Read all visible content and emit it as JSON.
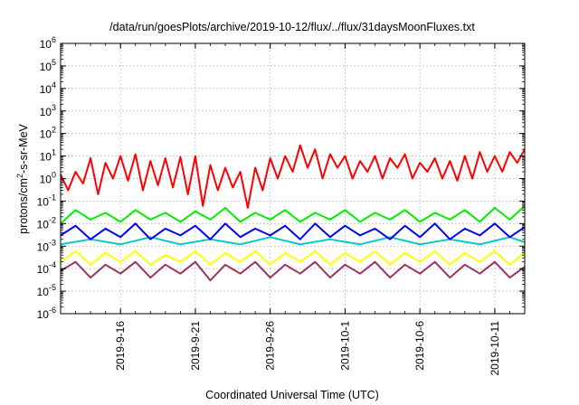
{
  "chart_data": {
    "type": "line",
    "title": "/data/run/goesPlots/archive/2019-10-12/flux/../flux/31daysMoonFluxes.txt",
    "xlabel": "Coordinated Universal Time (UTC)",
    "ylabel_base": "protons/cm",
    "ylabel_sup": "2",
    "ylabel_rest": "-s-sr-MeV",
    "yscale": "log",
    "ylim": [
      1e-06,
      1000000.0
    ],
    "xlim": [
      "2019-09-12",
      "2019-10-13"
    ],
    "grid": true,
    "yticks": [
      {
        "value": 1e-06,
        "base": "10",
        "exp": "-6"
      },
      {
        "value": 1e-05,
        "base": "10",
        "exp": "-5"
      },
      {
        "value": 0.0001,
        "base": "10",
        "exp": "-4"
      },
      {
        "value": 0.001,
        "base": "10",
        "exp": "-3"
      },
      {
        "value": 0.01,
        "base": "10",
        "exp": "-2"
      },
      {
        "value": 0.1,
        "base": "10",
        "exp": "-1"
      },
      {
        "value": 1,
        "base": "10",
        "exp": "0"
      },
      {
        "value": 10,
        "base": "10",
        "exp": "1"
      },
      {
        "value": 100,
        "base": "10",
        "exp": "2"
      },
      {
        "value": 1000,
        "base": "10",
        "exp": "3"
      },
      {
        "value": 10000.0,
        "base": "10",
        "exp": "4"
      },
      {
        "value": 100000.0,
        "base": "10",
        "exp": "5"
      },
      {
        "value": 1000000.0,
        "base": "10",
        "exp": "6"
      }
    ],
    "xticks": [
      {
        "date": "2019-09-16",
        "label": "2019-9-16"
      },
      {
        "date": "2019-09-21",
        "label": "2019-9-21"
      },
      {
        "date": "2019-09-26",
        "label": "2019-9-26"
      },
      {
        "date": "2019-10-01",
        "label": "2019-10-1"
      },
      {
        "date": "2019-10-06",
        "label": "2019-10-6"
      },
      {
        "date": "2019-10-11",
        "label": "2019-10-11"
      }
    ],
    "series": [
      {
        "color": "#ff0000",
        "points": [
          [
            "2019-09-12 00:00",
            1.5
          ],
          [
            "2019-09-12 12:00",
            0.3
          ],
          [
            "2019-09-13 00:00",
            2
          ],
          [
            "2019-09-13 12:00",
            0.6
          ],
          [
            "2019-09-14 00:00",
            8
          ],
          [
            "2019-09-14 12:00",
            0.2
          ],
          [
            "2019-09-15 00:00",
            5
          ],
          [
            "2019-09-15 12:00",
            1
          ],
          [
            "2019-09-16 00:00",
            10
          ],
          [
            "2019-09-16 12:00",
            0.8
          ],
          [
            "2019-09-17 00:00",
            12
          ],
          [
            "2019-09-17 12:00",
            0.3
          ],
          [
            "2019-09-18 00:00",
            6
          ],
          [
            "2019-09-18 12:00",
            0.5
          ],
          [
            "2019-09-19 00:00",
            8
          ],
          [
            "2019-09-19 12:00",
            0.4
          ],
          [
            "2019-09-20 00:00",
            9
          ],
          [
            "2019-09-20 12:00",
            0.2
          ],
          [
            "2019-09-21 00:00",
            10
          ],
          [
            "2019-09-21 12:00",
            0.06
          ],
          [
            "2019-09-22 00:00",
            4
          ],
          [
            "2019-09-22 12:00",
            0.3
          ],
          [
            "2019-09-23 00:00",
            3
          ],
          [
            "2019-09-23 12:00",
            0.4
          ],
          [
            "2019-09-24 00:00",
            2
          ],
          [
            "2019-09-24 12:00",
            0.05
          ],
          [
            "2019-09-25 00:00",
            3
          ],
          [
            "2019-09-25 12:00",
            0.3
          ],
          [
            "2019-09-26 00:00",
            8
          ],
          [
            "2019-09-26 12:00",
            1
          ],
          [
            "2019-09-27 00:00",
            10
          ],
          [
            "2019-09-27 12:00",
            2
          ],
          [
            "2019-09-28 00:00",
            30
          ],
          [
            "2019-09-28 12:00",
            3
          ],
          [
            "2019-09-29 00:00",
            20
          ],
          [
            "2019-09-29 12:00",
            1
          ],
          [
            "2019-09-30 00:00",
            12
          ],
          [
            "2019-09-30 12:00",
            3
          ],
          [
            "2019-10-01 00:00",
            10
          ],
          [
            "2019-10-01 12:00",
            1
          ],
          [
            "2019-10-02 00:00",
            6
          ],
          [
            "2019-10-02 12:00",
            2
          ],
          [
            "2019-10-03 00:00",
            10
          ],
          [
            "2019-10-03 12:00",
            1
          ],
          [
            "2019-10-04 00:00",
            8
          ],
          [
            "2019-10-04 12:00",
            3
          ],
          [
            "2019-10-05 00:00",
            12
          ],
          [
            "2019-10-05 12:00",
            1
          ],
          [
            "2019-10-06 00:00",
            5
          ],
          [
            "2019-10-06 12:00",
            2
          ],
          [
            "2019-10-07 00:00",
            8
          ],
          [
            "2019-10-07 12:00",
            1
          ],
          [
            "2019-10-08 00:00",
            6
          ],
          [
            "2019-10-08 12:00",
            0.8
          ],
          [
            "2019-10-09 00:00",
            10
          ],
          [
            "2019-10-09 12:00",
            1
          ],
          [
            "2019-10-10 00:00",
            15
          ],
          [
            "2019-10-10 12:00",
            2
          ],
          [
            "2019-10-11 00:00",
            10
          ],
          [
            "2019-10-11 12:00",
            2
          ],
          [
            "2019-10-12 00:00",
            15
          ],
          [
            "2019-10-12 12:00",
            5
          ],
          [
            "2019-10-13 00:00",
            20
          ]
        ]
      },
      {
        "color": "#00ee00",
        "points": [
          [
            "2019-09-12 00:00",
            0.01
          ],
          [
            "2019-09-13 00:00",
            0.04
          ],
          [
            "2019-09-14 00:00",
            0.015
          ],
          [
            "2019-09-15 00:00",
            0.03
          ],
          [
            "2019-09-16 00:00",
            0.012
          ],
          [
            "2019-09-17 00:00",
            0.04
          ],
          [
            "2019-09-18 00:00",
            0.015
          ],
          [
            "2019-09-19 00:00",
            0.03
          ],
          [
            "2019-09-20 00:00",
            0.012
          ],
          [
            "2019-09-21 00:00",
            0.035
          ],
          [
            "2019-09-22 00:00",
            0.015
          ],
          [
            "2019-09-23 00:00",
            0.05
          ],
          [
            "2019-09-24 00:00",
            0.012
          ],
          [
            "2019-09-25 00:00",
            0.03
          ],
          [
            "2019-09-26 00:00",
            0.015
          ],
          [
            "2019-09-27 00:00",
            0.04
          ],
          [
            "2019-09-28 00:00",
            0.012
          ],
          [
            "2019-09-29 00:00",
            0.03
          ],
          [
            "2019-09-30 00:00",
            0.015
          ],
          [
            "2019-10-01 00:00",
            0.04
          ],
          [
            "2019-10-02 00:00",
            0.012
          ],
          [
            "2019-10-03 00:00",
            0.03
          ],
          [
            "2019-10-04 00:00",
            0.015
          ],
          [
            "2019-10-05 00:00",
            0.04
          ],
          [
            "2019-10-06 00:00",
            0.012
          ],
          [
            "2019-10-07 00:00",
            0.03
          ],
          [
            "2019-10-08 00:00",
            0.015
          ],
          [
            "2019-10-09 00:00",
            0.04
          ],
          [
            "2019-10-10 00:00",
            0.012
          ],
          [
            "2019-10-11 00:00",
            0.05
          ],
          [
            "2019-10-12 00:00",
            0.015
          ],
          [
            "2019-10-13 00:00",
            0.06
          ]
        ]
      },
      {
        "color": "#00c8c8",
        "points": [
          [
            "2019-09-12 00:00",
            0.0012
          ],
          [
            "2019-09-14 00:00",
            0.002
          ],
          [
            "2019-09-16 00:00",
            0.0012
          ],
          [
            "2019-09-18 00:00",
            0.0025
          ],
          [
            "2019-09-20 00:00",
            0.0012
          ],
          [
            "2019-09-22 00:00",
            0.002
          ],
          [
            "2019-09-24 00:00",
            0.0012
          ],
          [
            "2019-09-26 00:00",
            0.0025
          ],
          [
            "2019-09-28 00:00",
            0.0012
          ],
          [
            "2019-09-30 00:00",
            0.002
          ],
          [
            "2019-10-02 00:00",
            0.0012
          ],
          [
            "2019-10-04 00:00",
            0.0025
          ],
          [
            "2019-10-06 00:00",
            0.0012
          ],
          [
            "2019-10-08 00:00",
            0.002
          ],
          [
            "2019-10-10 00:00",
            0.0012
          ],
          [
            "2019-10-12 00:00",
            0.0025
          ],
          [
            "2019-10-13 00:00",
            0.0015
          ]
        ]
      },
      {
        "color": "#0000ff",
        "points": [
          [
            "2019-09-12 00:00",
            0.003
          ],
          [
            "2019-09-13 00:00",
            0.008
          ],
          [
            "2019-09-14 00:00",
            0.002
          ],
          [
            "2019-09-15 00:00",
            0.006
          ],
          [
            "2019-09-16 00:00",
            0.0025
          ],
          [
            "2019-09-17 00:00",
            0.01
          ],
          [
            "2019-09-18 00:00",
            0.002
          ],
          [
            "2019-09-19 00:00",
            0.006
          ],
          [
            "2019-09-20 00:00",
            0.003
          ],
          [
            "2019-09-21 00:00",
            0.008
          ],
          [
            "2019-09-22 00:00",
            0.002
          ],
          [
            "2019-09-23 00:00",
            0.01
          ],
          [
            "2019-09-24 00:00",
            0.0025
          ],
          [
            "2019-09-25 00:00",
            0.006
          ],
          [
            "2019-09-26 00:00",
            0.003
          ],
          [
            "2019-09-27 00:00",
            0.008
          ],
          [
            "2019-09-28 00:00",
            0.002
          ],
          [
            "2019-09-29 00:00",
            0.01
          ],
          [
            "2019-09-30 00:00",
            0.0025
          ],
          [
            "2019-10-01 00:00",
            0.008
          ],
          [
            "2019-10-02 00:00",
            0.003
          ],
          [
            "2019-10-03 00:00",
            0.006
          ],
          [
            "2019-10-04 00:00",
            0.002
          ],
          [
            "2019-10-05 00:00",
            0.008
          ],
          [
            "2019-10-06 00:00",
            0.0025
          ],
          [
            "2019-10-07 00:00",
            0.01
          ],
          [
            "2019-10-08 00:00",
            0.002
          ],
          [
            "2019-10-09 00:00",
            0.006
          ],
          [
            "2019-10-10 00:00",
            0.003
          ],
          [
            "2019-10-11 00:00",
            0.01
          ],
          [
            "2019-10-12 00:00",
            0.0025
          ],
          [
            "2019-10-13 00:00",
            0.007
          ]
        ]
      },
      {
        "color": "#ffff00",
        "points": [
          [
            "2019-09-12 00:00",
            0.0002
          ],
          [
            "2019-09-13 00:00",
            0.0006
          ],
          [
            "2019-09-14 00:00",
            0.00015
          ],
          [
            "2019-09-15 00:00",
            0.0005
          ],
          [
            "2019-09-16 00:00",
            0.0002
          ],
          [
            "2019-09-17 00:00",
            0.0006
          ],
          [
            "2019-09-18 00:00",
            0.00015
          ],
          [
            "2019-09-19 00:00",
            0.0004
          ],
          [
            "2019-09-20 00:00",
            0.0002
          ],
          [
            "2019-09-21 00:00",
            0.0006
          ],
          [
            "2019-09-22 00:00",
            0.00015
          ],
          [
            "2019-09-23 00:00",
            0.0005
          ],
          [
            "2019-09-24 00:00",
            0.0002
          ],
          [
            "2019-09-25 00:00",
            0.0006
          ],
          [
            "2019-09-26 00:00",
            0.00015
          ],
          [
            "2019-09-27 00:00",
            0.0005
          ],
          [
            "2019-09-28 00:00",
            0.0002
          ],
          [
            "2019-09-29 00:00",
            0.0006
          ],
          [
            "2019-09-30 00:00",
            0.00015
          ],
          [
            "2019-10-01 00:00",
            0.0005
          ],
          [
            "2019-10-02 00:00",
            0.0002
          ],
          [
            "2019-10-03 00:00",
            0.0006
          ],
          [
            "2019-10-04 00:00",
            0.00015
          ],
          [
            "2019-10-05 00:00",
            0.0005
          ],
          [
            "2019-10-06 00:00",
            0.0002
          ],
          [
            "2019-10-07 00:00",
            0.0006
          ],
          [
            "2019-10-08 00:00",
            0.00015
          ],
          [
            "2019-10-09 00:00",
            0.0005
          ],
          [
            "2019-10-10 00:00",
            0.0002
          ],
          [
            "2019-10-11 00:00",
            0.0006
          ],
          [
            "2019-10-12 00:00",
            0.00015
          ],
          [
            "2019-10-13 00:00",
            0.0005
          ]
        ]
      },
      {
        "color": "#993366",
        "points": [
          [
            "2019-09-12 00:00",
            8e-05
          ],
          [
            "2019-09-13 00:00",
            0.0002
          ],
          [
            "2019-09-14 00:00",
            4e-05
          ],
          [
            "2019-09-15 00:00",
            0.00015
          ],
          [
            "2019-09-16 00:00",
            6e-05
          ],
          [
            "2019-09-17 00:00",
            0.0002
          ],
          [
            "2019-09-18 00:00",
            4e-05
          ],
          [
            "2019-09-19 00:00",
            0.00015
          ],
          [
            "2019-09-20 00:00",
            6e-05
          ],
          [
            "2019-09-21 00:00",
            0.0002
          ],
          [
            "2019-09-22 00:00",
            3e-05
          ],
          [
            "2019-09-23 00:00",
            0.00015
          ],
          [
            "2019-09-24 00:00",
            6e-05
          ],
          [
            "2019-09-25 00:00",
            0.0002
          ],
          [
            "2019-09-26 00:00",
            4e-05
          ],
          [
            "2019-09-27 00:00",
            0.00015
          ],
          [
            "2019-09-28 00:00",
            6e-05
          ],
          [
            "2019-09-29 00:00",
            0.0002
          ],
          [
            "2019-09-30 00:00",
            4e-05
          ],
          [
            "2019-10-01 00:00",
            0.00015
          ],
          [
            "2019-10-02 00:00",
            6e-05
          ],
          [
            "2019-10-03 00:00",
            0.0002
          ],
          [
            "2019-10-04 00:00",
            4e-05
          ],
          [
            "2019-10-05 00:00",
            0.00015
          ],
          [
            "2019-10-06 00:00",
            6e-05
          ],
          [
            "2019-10-07 00:00",
            0.0002
          ],
          [
            "2019-10-08 00:00",
            4e-05
          ],
          [
            "2019-10-09 00:00",
            0.00015
          ],
          [
            "2019-10-10 00:00",
            6e-05
          ],
          [
            "2019-10-11 00:00",
            0.0002
          ],
          [
            "2019-10-12 00:00",
            4e-05
          ],
          [
            "2019-10-13 00:00",
            0.00012
          ]
        ]
      }
    ]
  }
}
